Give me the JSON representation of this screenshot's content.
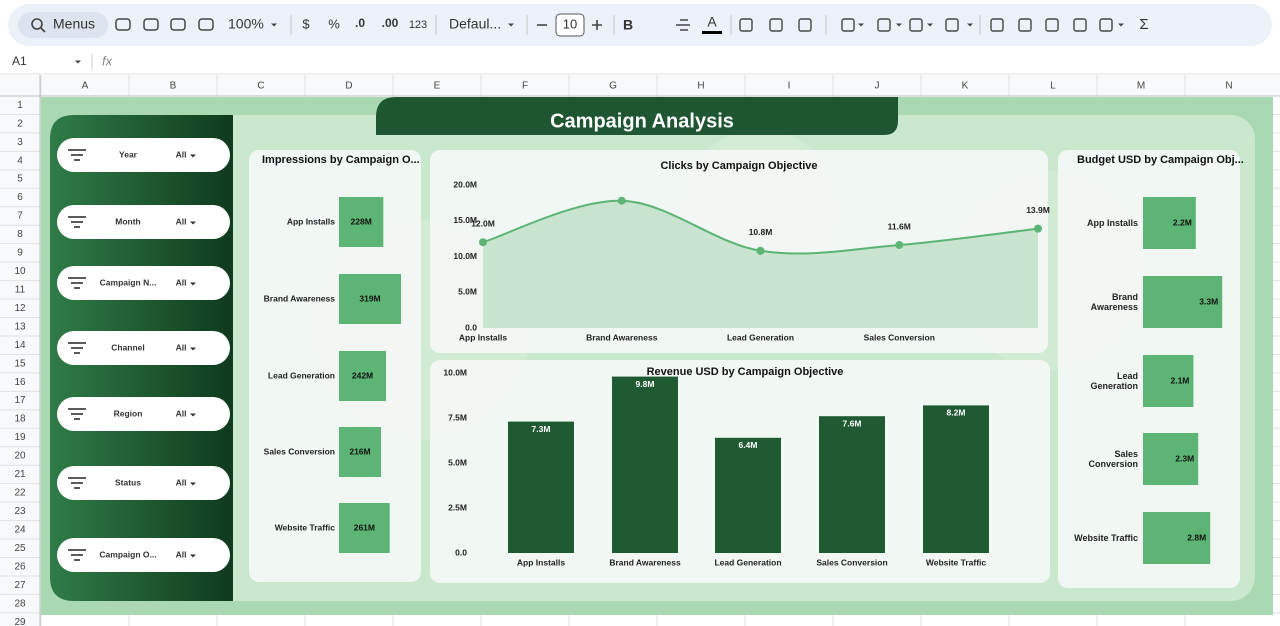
{
  "toolbar": {
    "search": "Menus",
    "zoom": "100%",
    "currency": "$",
    "percent": "%",
    "decrease_decimals": ".0",
    "increase_decimals": ".00",
    "number_format": "123",
    "font": "Defaul...",
    "font_size": "10",
    "bold": "B",
    "text_color": "A",
    "functions": "Σ"
  },
  "formula_bar": {
    "cell": "A1",
    "fx": "fx"
  },
  "columns": [
    "A",
    "B",
    "C",
    "D",
    "E",
    "F",
    "G",
    "H",
    "I",
    "J",
    "K",
    "L",
    "M",
    "N"
  ],
  "rows": [
    1,
    2,
    3,
    4,
    5,
    6,
    7,
    8,
    9,
    10,
    11,
    12,
    13,
    14,
    15,
    16,
    17,
    18,
    19,
    20,
    21,
    22,
    23,
    24,
    25,
    26,
    27,
    28,
    29
  ],
  "dashboard": {
    "title": "Campaign Analysis",
    "filters": [
      {
        "label": "Year",
        "value": "All"
      },
      {
        "label": "Month",
        "value": "All"
      },
      {
        "label": "Campaign N...",
        "value": "All"
      },
      {
        "label": "Channel",
        "value": "All"
      },
      {
        "label": "Region",
        "value": "All"
      },
      {
        "label": "Status",
        "value": "All"
      },
      {
        "label": "Campaign O...",
        "value": "All"
      }
    ],
    "charts": [
      {
        "type": "bar",
        "orientation": "horizontal",
        "title": "Impressions by Campaign O...",
        "categories": [
          "App Installs",
          "Brand Awareness",
          "Lead Generation",
          "Sales Conversion",
          "Website Traffic"
        ],
        "values": [
          228,
          319,
          242,
          216,
          261
        ],
        "value_labels": [
          "228M",
          "319M",
          "242M",
          "216M",
          "261M"
        ],
        "color": "#5cb574"
      },
      {
        "type": "line",
        "title": "Clicks by Campaign Objective",
        "categories": [
          "App Installs",
          "Brand Awareness",
          "Lead Generation",
          "Sales Conversion",
          null
        ],
        "values": [
          12.0,
          17.8,
          10.8,
          11.6,
          13.9
        ],
        "value_labels": [
          "12.0M",
          null,
          "10.8M",
          "11.6M",
          "13.9M"
        ],
        "ylim": [
          0,
          20
        ],
        "yticks": [
          {
            "value": 0,
            "label": "0.0"
          },
          {
            "value": 5,
            "label": "5.0M"
          },
          {
            "value": 10,
            "label": "10.0M"
          },
          {
            "value": 15,
            "label": "15.0M"
          },
          {
            "value": 20,
            "label": "20.0M"
          }
        ],
        "color": "#5cb574",
        "area_color": "#c2e0c8"
      },
      {
        "type": "bar",
        "orientation": "vertical",
        "title": "Revenue USD by Campaign Objective",
        "categories": [
          "App Installs",
          "Brand Awareness",
          "Lead Generation",
          "Sales Conversion",
          "Website Traffic"
        ],
        "values": [
          7.3,
          9.8,
          6.4,
          7.6,
          8.2
        ],
        "value_labels": [
          "7.3M",
          "9.8M",
          "6.4M",
          "7.6M",
          "8.2M"
        ],
        "ylim": [
          0,
          10
        ],
        "yticks": [
          {
            "value": 0,
            "label": "0.0"
          },
          {
            "value": 2.5,
            "label": "2.5M"
          },
          {
            "value": 5,
            "label": "5.0M"
          },
          {
            "value": 7.5,
            "label": "7.5M"
          },
          {
            "value": 10,
            "label": "10.0M"
          }
        ],
        "color": "#1f5a33"
      },
      {
        "type": "bar",
        "orientation": "horizontal",
        "title": "Budget USD by Campaign Obj...",
        "categories": [
          "App Installs",
          "Brand Awareness",
          "Lead Generation",
          "Sales Conversion",
          "Website Traffic"
        ],
        "values": [
          2.2,
          3.3,
          2.1,
          2.3,
          2.8
        ],
        "value_labels": [
          "2.2M",
          "3.3M",
          "2.1M",
          "2.3M",
          "2.8M"
        ],
        "color": "#5cb574"
      }
    ]
  }
}
